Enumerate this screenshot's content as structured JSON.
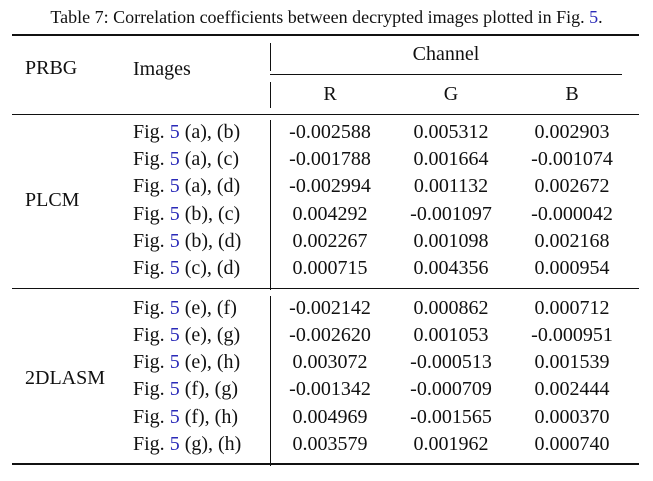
{
  "caption": {
    "text": "Table 7: Correlation coefficients between decrypted images plotted in Fig.",
    "ref": "5",
    "tail": "."
  },
  "header": {
    "prbg": "PRBG",
    "images": "Images",
    "channel": "Channel",
    "r": "R",
    "g": "G",
    "b": "B"
  },
  "fig_prefix": "Fig.",
  "fig_ref": "5",
  "groups": [
    {
      "name": "PLCM",
      "rows": [
        {
          "pair": "(a), (b)",
          "r": "-0.002588",
          "g": "0.005312",
          "b": "0.002903"
        },
        {
          "pair": "(a), (c)",
          "r": "-0.001788",
          "g": "0.001664",
          "b": "-0.001074"
        },
        {
          "pair": "(a), (d)",
          "r": "-0.002994",
          "g": "0.001132",
          "b": "0.002672"
        },
        {
          "pair": "(b), (c)",
          "r": "0.004292",
          "g": "-0.001097",
          "b": "-0.000042"
        },
        {
          "pair": "(b), (d)",
          "r": "0.002267",
          "g": "0.001098",
          "b": "0.002168"
        },
        {
          "pair": "(c), (d)",
          "r": "0.000715",
          "g": "0.004356",
          "b": "0.000954"
        }
      ]
    },
    {
      "name": "2DLASM",
      "rows": [
        {
          "pair": "(e), (f)",
          "r": "-0.002142",
          "g": "0.000862",
          "b": "0.000712"
        },
        {
          "pair": "(e), (g)",
          "r": "-0.002620",
          "g": "0.001053",
          "b": "-0.000951"
        },
        {
          "pair": "(e), (h)",
          "r": "0.003072",
          "g": "-0.000513",
          "b": "0.001539"
        },
        {
          "pair": "(f), (g)",
          "r": "-0.001342",
          "g": "-0.000709",
          "b": "0.002444"
        },
        {
          "pair": "(f), (h)",
          "r": "0.004969",
          "g": "-0.001565",
          "b": "0.000370"
        },
        {
          "pair": "(g), (h)",
          "r": "0.003579",
          "g": "0.001962",
          "b": "0.000740"
        }
      ]
    }
  ]
}
